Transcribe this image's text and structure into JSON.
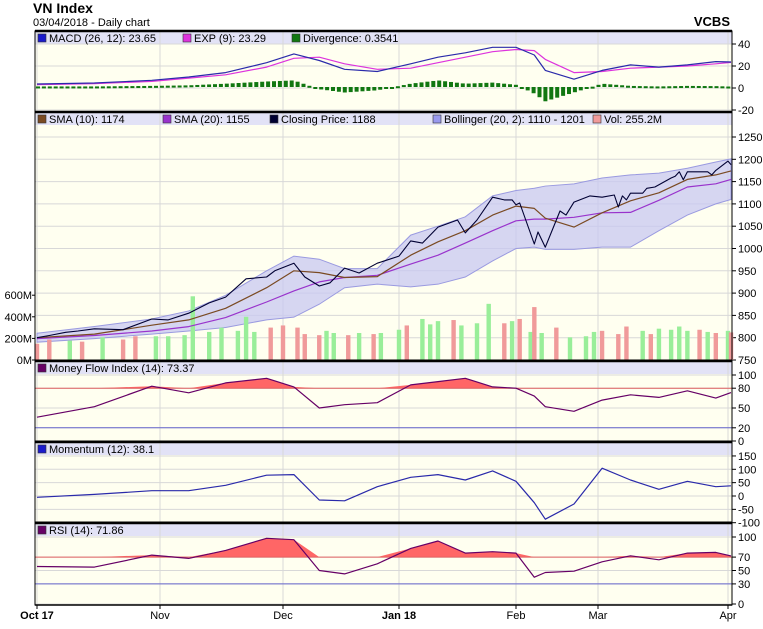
{
  "header": {
    "title": "VN Index",
    "subtitle": "03/04/2018 - Daily chart",
    "brand": "VCBS"
  },
  "legends": {
    "macd": [
      {
        "label": "MACD (26, 12): 23.65",
        "color": "#1a1acc"
      },
      {
        "label": "EXP (9): 23.29",
        "color": "#dd33dd"
      },
      {
        "label": "Divergence: 0.3541",
        "color": "#117711"
      }
    ],
    "price": [
      {
        "label": "SMA (10): 1174",
        "color": "#7a4a22"
      },
      {
        "label": "SMA (20): 1155",
        "color": "#9933cc"
      },
      {
        "label": "Closing Price: 1188",
        "color": "#000033"
      },
      {
        "label": "Bollinger (20, 2): 1110 - 1201",
        "color": "#9999ee"
      },
      {
        "label": "Vol: 255.2M",
        "color": "#f09a9a"
      }
    ],
    "mfi": [
      {
        "label": "Money Flow Index (14): 73.37",
        "color": "#660066"
      }
    ],
    "momentum": [
      {
        "label": "Momentum (12): 38.1",
        "color": "#1a1acc"
      }
    ],
    "rsi": [
      {
        "label": "RSI (14): 71.86",
        "color": "#660066"
      }
    ]
  },
  "chart_data": {
    "type": "line",
    "title": "VN Index",
    "x_ticks": [
      {
        "date": "2017-10-02",
        "label": "Oct 17",
        "bold": true
      },
      {
        "date": "2017-11-01",
        "label": "Nov",
        "bold": false
      },
      {
        "date": "2017-12-01",
        "label": "Dec",
        "bold": false
      },
      {
        "date": "2018-01-02",
        "label": "Jan 18",
        "bold": true
      },
      {
        "date": "2018-02-01",
        "label": "Feb",
        "bold": false
      },
      {
        "date": "2018-03-01",
        "label": "Mar",
        "bold": false
      },
      {
        "date": "2018-04-02",
        "label": "Apr",
        "bold": false
      }
    ],
    "dates": [
      "2017-10-02",
      "2017-10-16",
      "2017-10-30",
      "2017-11-08",
      "2017-11-17",
      "2017-11-27",
      "2017-12-04",
      "2017-12-11",
      "2017-12-18",
      "2017-12-27",
      "2018-01-05",
      "2018-01-12",
      "2018-01-19",
      "2018-01-26",
      "2018-02-01",
      "2018-02-06",
      "2018-02-09",
      "2018-02-23",
      "2018-03-02",
      "2018-03-09",
      "2018-03-16",
      "2018-03-23",
      "2018-03-30",
      "2018-04-03"
    ],
    "macd_panel": {
      "ylim": [
        -20,
        40
      ],
      "yticks": [
        40,
        20,
        0,
        -20
      ],
      "macd": [
        3.6,
        4.5,
        7,
        10,
        14,
        23,
        31,
        25,
        17,
        15,
        22,
        28,
        32,
        37,
        37,
        30,
        16,
        8,
        16,
        21,
        19,
        21,
        24,
        23.65
      ],
      "exp": [
        3.0,
        4.0,
        6,
        9,
        12,
        19,
        27,
        28,
        22,
        17,
        18,
        23,
        28,
        33,
        35,
        34,
        26,
        14,
        15,
        18,
        19,
        20,
        22,
        23.29
      ],
      "divergence": [
        0.5,
        0.5,
        1,
        1.5,
        3,
        5,
        6,
        -2,
        -5,
        -3,
        3,
        6,
        3,
        4,
        2,
        -6,
        -13,
        -5,
        3,
        1,
        0.5,
        1,
        0.8,
        0.3541
      ]
    },
    "price_panel": {
      "ylim": [
        750,
        1250
      ],
      "yticks": [
        1250,
        1200,
        1150,
        1100,
        1050,
        1000,
        950,
        900,
        850,
        800,
        750
      ],
      "close": {
        "dates": [
          "2017-10-02",
          "2017-10-05",
          "2017-10-09",
          "2017-10-12",
          "2017-10-16",
          "2017-10-23",
          "2017-10-30",
          "2017-11-03",
          "2017-11-08",
          "2017-11-13",
          "2017-11-17",
          "2017-11-22",
          "2017-11-27",
          "2017-11-29",
          "2017-12-04",
          "2017-12-07",
          "2017-12-11",
          "2017-12-14",
          "2017-12-18",
          "2017-12-22",
          "2017-12-27",
          "2018-01-02",
          "2018-01-05",
          "2018-01-08",
          "2018-01-12",
          "2018-01-17",
          "2018-01-19",
          "2018-01-22",
          "2018-01-26",
          "2018-01-29",
          "2018-01-31",
          "2018-02-01",
          "2018-02-02",
          "2018-02-06",
          "2018-02-07",
          "2018-02-09",
          "2018-02-13",
          "2018-02-21",
          "2018-02-23",
          "2018-02-27",
          "2018-03-02",
          "2018-03-05",
          "2018-03-06",
          "2018-03-07",
          "2018-03-08",
          "2018-03-09",
          "2018-03-12",
          "2018-03-13",
          "2018-03-15",
          "2018-03-19",
          "2018-03-20",
          "2018-03-21",
          "2018-03-22",
          "2018-03-23",
          "2018-03-28",
          "2018-03-29",
          "2018-03-30",
          "2018-04-02",
          "2018-04-03"
        ],
        "values": [
          800,
          805,
          812,
          815,
          820,
          818,
          842,
          840,
          855,
          878,
          891,
          932,
          936,
          950,
          967,
          936,
          916,
          923,
          956,
          945,
          967,
          983,
          1017,
          1012,
          1048,
          1064,
          1035,
          1064,
          1115,
          1109,
          1109,
          1098,
          1102,
          1010,
          1037,
          1003,
          1084,
          1075,
          1104,
          1118,
          1115,
          1120,
          1093,
          1118,
          1109,
          1124,
          1124,
          1135,
          1138,
          1158,
          1162,
          1172,
          1154,
          1172,
          1172,
          1165,
          1175,
          1196,
          1188
        ]
      },
      "sma10": [
        800,
        808,
        828,
        840,
        866,
        912,
        950,
        946,
        935,
        937,
        985,
        1015,
        1040,
        1075,
        1095,
        1090,
        1068,
        1048,
        1080,
        1107,
        1125,
        1155,
        1165,
        1174
      ],
      "sma20": [
        798,
        805,
        815,
        825,
        845,
        880,
        905,
        925,
        935,
        940,
        965,
        985,
        1012,
        1040,
        1062,
        1066,
        1066,
        1070,
        1080,
        1081,
        1108,
        1138,
        1145,
        1155
      ],
      "bollinger_upper": [
        810,
        825,
        842,
        860,
        895,
        950,
        983,
        976,
        955,
        955,
        1030,
        1050,
        1071,
        1118,
        1130,
        1135,
        1140,
        1145,
        1158,
        1165,
        1169,
        1180,
        1194,
        1201
      ],
      "bollinger_lower": [
        790,
        798,
        808,
        815,
        823,
        840,
        846,
        875,
        912,
        920,
        914,
        920,
        936,
        972,
        1000,
        1003,
        998,
        998,
        1003,
        1003,
        1040,
        1075,
        1100,
        1110
      ],
      "volume": {
        "yticks": [
          "600M",
          "400M",
          "200M",
          "0M"
        ],
        "ytick_values": [
          600,
          400,
          200,
          0
        ],
        "unit": "M",
        "dates": [
          "2017-10-02",
          "2017-10-05",
          "2017-10-10",
          "2017-10-13",
          "2017-10-18",
          "2017-10-23",
          "2017-10-26",
          "2017-10-31",
          "2017-11-03",
          "2017-11-07",
          "2017-11-09",
          "2017-11-13",
          "2017-11-16",
          "2017-11-20",
          "2017-11-22",
          "2017-11-24",
          "2017-11-28",
          "2017-12-01",
          "2017-12-05",
          "2017-12-07",
          "2017-12-11",
          "2017-12-13",
          "2017-12-15",
          "2017-12-19",
          "2017-12-22",
          "2017-12-26",
          "2017-12-28",
          "2018-01-02",
          "2018-01-04",
          "2018-01-08",
          "2018-01-10",
          "2018-01-12",
          "2018-01-16",
          "2018-01-18",
          "2018-01-22",
          "2018-01-25",
          "2018-01-29",
          "2018-01-31",
          "2018-02-02",
          "2018-02-05",
          "2018-02-06",
          "2018-02-08",
          "2018-02-12",
          "2018-02-22",
          "2018-02-26",
          "2018-02-28",
          "2018-03-02",
          "2018-03-06",
          "2018-03-08",
          "2018-03-12",
          "2018-03-14",
          "2018-03-16",
          "2018-03-19",
          "2018-03-21",
          "2018-03-23",
          "2018-03-26",
          "2018-03-28",
          "2018-03-30",
          "2018-04-02",
          "2018-04-03"
        ],
        "values": [
          150,
          190,
          180,
          170,
          210,
          190,
          220,
          220,
          220,
          230,
          590,
          260,
          300,
          270,
          400,
          260,
          300,
          320,
          300,
          240,
          230,
          270,
          250,
          230,
          250,
          240,
          250,
          280,
          320,
          380,
          330,
          360,
          370,
          320,
          340,
          520,
          340,
          360,
          380,
          260,
          490,
          250,
          300,
          210,
          220,
          260,
          270,
          240,
          310,
          270,
          240,
          290,
          280,
          310,
          270,
          280,
          260,
          250,
          270,
          255.2
        ],
        "direction": [
          "down",
          "down",
          "up",
          "down",
          "up",
          "down",
          "down",
          "up",
          "up",
          "up",
          "up",
          "up",
          "up",
          "up",
          "up",
          "up",
          "down",
          "down",
          "down",
          "down",
          "down",
          "up",
          "up",
          "down",
          "up",
          "down",
          "up",
          "up",
          "down",
          "up",
          "up",
          "up",
          "down",
          "up",
          "up",
          "up",
          "down",
          "up",
          "down",
          "up",
          "down",
          "up",
          "down",
          "up",
          "up",
          "up",
          "down",
          "down",
          "down",
          "up",
          "down",
          "up",
          "up",
          "up",
          "up",
          "down",
          "up",
          "down",
          "up",
          "down"
        ]
      }
    },
    "mfi_panel": {
      "ylim": [
        0,
        100
      ],
      "yticks": [
        100,
        80,
        50,
        20,
        0
      ],
      "overbought": 80,
      "oversold": 20,
      "values": [
        36,
        52,
        83,
        73,
        88,
        95,
        82,
        50,
        55,
        58,
        85,
        90,
        95,
        82,
        80,
        68,
        52,
        45,
        62,
        70,
        66,
        76,
        65,
        73.37
      ]
    },
    "momentum_panel": {
      "ylim": [
        -100,
        150
      ],
      "yticks": [
        150,
        100,
        50,
        0,
        -50,
        -100
      ],
      "values": [
        -5,
        6,
        20,
        20,
        40,
        78,
        80,
        -15,
        -18,
        35,
        70,
        80,
        60,
        94,
        55,
        -25,
        -87,
        -30,
        104,
        60,
        25,
        55,
        35,
        38.1
      ]
    },
    "rsi_panel": {
      "ylim": [
        0,
        100
      ],
      "yticks": [
        100,
        70,
        50,
        30,
        0
      ],
      "overbought": 70,
      "oversold": 30,
      "values": [
        56,
        55,
        73,
        68,
        80,
        98,
        96,
        50,
        45,
        60,
        83,
        94,
        76,
        78,
        76,
        40,
        47,
        49,
        63,
        72,
        66,
        76,
        77,
        71.86
      ]
    },
    "colors": {
      "plot_bg": "#fffff0",
      "legend_bg": "#e2e2f6",
      "grid": "#d8d8d8",
      "vol_up": "#99ee99",
      "vol_down": "#f09a9a",
      "bollinger_fill": "#c8c8f2",
      "bollinger_edge": "#9a9ae0",
      "overbought_fill": "#ff6666",
      "upper_line": "#e06060",
      "lower_line": "#6666cc"
    }
  }
}
